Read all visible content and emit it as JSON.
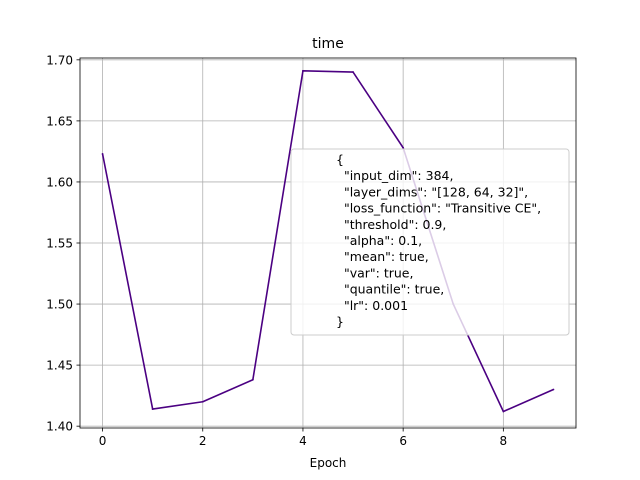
{
  "chart_data": {
    "type": "line",
    "title": "time",
    "xlabel": "Epoch",
    "ylabel": "",
    "xlim": [
      -0.45,
      9.45
    ],
    "ylim": [
      1.3985,
      1.7015
    ],
    "x_ticks": [
      0,
      2,
      4,
      6,
      8
    ],
    "x_tick_labels": [
      "0",
      "2",
      "4",
      "6",
      "8"
    ],
    "y_ticks": [
      1.4,
      1.45,
      1.5,
      1.55,
      1.6,
      1.65,
      1.7
    ],
    "y_tick_labels": [
      "1.40",
      "1.45",
      "1.50",
      "1.55",
      "1.60",
      "1.65",
      "1.70"
    ],
    "grid": true,
    "legend_position": "center-right",
    "series": [
      {
        "color": "#4b0082",
        "x": [
          0,
          1,
          2,
          3,
          4,
          5,
          6,
          7,
          8,
          9
        ],
        "values": [
          1.623,
          1.414,
          1.42,
          1.438,
          1.691,
          1.69,
          1.628,
          1.5,
          1.412,
          1.43
        ]
      }
    ],
    "legend_lines": [
      "{",
      "  \"input_dim\": 384,",
      "  \"layer_dims\": \"[128, 64, 32]\",",
      "  \"loss_function\": \"Transitive CE\",",
      "  \"threshold\": 0.9,",
      "  \"alpha\": 0.1,",
      "  \"mean\": true,",
      "  \"var\": true,",
      "  \"quantile\": true,",
      "  \"lr\": 0.001",
      "}"
    ]
  }
}
